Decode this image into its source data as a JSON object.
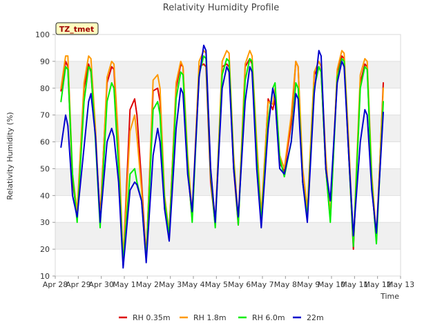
{
  "chart_data": {
    "type": "line",
    "title": "Relativity Humidity Profile",
    "xlabel": "Time",
    "ylabel": "Relativity Humidity (%)",
    "ylim": [
      10,
      100
    ],
    "yticks": [
      10,
      20,
      30,
      40,
      50,
      60,
      70,
      80,
      90,
      100
    ],
    "xlim": [
      0,
      15
    ],
    "xticks": [
      {
        "x": 0,
        "label": "Apr 28"
      },
      {
        "x": 1,
        "label": "Apr 29"
      },
      {
        "x": 2,
        "label": "Apr 30"
      },
      {
        "x": 3,
        "label": "May 1"
      },
      {
        "x": 4,
        "label": "May 2"
      },
      {
        "x": 5,
        "label": "May 3"
      },
      {
        "x": 6,
        "label": "May 4"
      },
      {
        "x": 7,
        "label": "May 5"
      },
      {
        "x": 8,
        "label": "May 6"
      },
      {
        "x": 9,
        "label": "May 7"
      },
      {
        "x": 10,
        "label": "May 8"
      },
      {
        "x": 11,
        "label": "May 9"
      },
      {
        "x": 12,
        "label": "May 10"
      },
      {
        "x": 13,
        "label": "May 11"
      },
      {
        "x": 14,
        "label": "May 12"
      },
      {
        "x": 15,
        "label": "May 13"
      }
    ],
    "grid": "horizontal bands",
    "legend_position": "bottom",
    "annotation": "TZ_tmet",
    "x": [
      0.25,
      0.45,
      0.55,
      0.75,
      0.95,
      1.25,
      1.45,
      1.55,
      1.75,
      1.95,
      2.25,
      2.45,
      2.55,
      2.75,
      2.95,
      3.25,
      3.45,
      3.55,
      3.75,
      3.95,
      4.25,
      4.45,
      4.55,
      4.75,
      4.95,
      5.25,
      5.45,
      5.55,
      5.75,
      5.95,
      6.25,
      6.45,
      6.55,
      6.75,
      6.95,
      7.25,
      7.45,
      7.55,
      7.75,
      7.95,
      8.25,
      8.45,
      8.55,
      8.75,
      8.95,
      9.25,
      9.45,
      9.55,
      9.75,
      9.95,
      10.25,
      10.45,
      10.55,
      10.75,
      10.95,
      11.25,
      11.45,
      11.55,
      11.75,
      11.95,
      12.25,
      12.45,
      12.55,
      12.75,
      12.95,
      13.25,
      13.45,
      13.55,
      13.75,
      13.95,
      14.25
    ],
    "series": [
      {
        "name": "RH 0.35m",
        "color": "#dd0000",
        "values": [
          79,
          90,
          88,
          45,
          33,
          80,
          89,
          86,
          62,
          32,
          82,
          88,
          87,
          55,
          15,
          72,
          76,
          70,
          45,
          17,
          79,
          80,
          75,
          35,
          27,
          80,
          89,
          88,
          50,
          31,
          88,
          89,
          88,
          45,
          29,
          88,
          89,
          88,
          50,
          29,
          88,
          91,
          89,
          55,
          30,
          76,
          72,
          76,
          52,
          49,
          67,
          90,
          88,
          45,
          33,
          85,
          88,
          86,
          50,
          31,
          86,
          92,
          91,
          55,
          20,
          82,
          89,
          88,
          44,
          23,
          82
        ]
      },
      {
        "name": "RH 1.8m",
        "color": "#ff9900",
        "values": [
          80,
          92,
          92,
          48,
          34,
          82,
          92,
          91,
          65,
          30,
          84,
          90,
          89,
          60,
          16,
          64,
          70,
          62,
          42,
          16,
          83,
          85,
          80,
          40,
          26,
          82,
          90,
          88,
          55,
          33,
          90,
          94,
          93,
          50,
          30,
          90,
          94,
          93,
          55,
          31,
          89,
          94,
          92,
          60,
          33,
          75,
          74,
          80,
          55,
          50,
          70,
          90,
          88,
          50,
          35,
          86,
          90,
          88,
          55,
          32,
          87,
          94,
          93,
          60,
          22,
          85,
          91,
          90,
          48,
          25,
          80
        ]
      },
      {
        "name": "RH 6.0m",
        "color": "#00ee00",
        "values": [
          75,
          88,
          87,
          48,
          30,
          75,
          88,
          87,
          60,
          28,
          75,
          82,
          80,
          50,
          15,
          48,
          50,
          45,
          38,
          16,
          72,
          75,
          70,
          38,
          25,
          76,
          86,
          85,
          52,
          30,
          85,
          92,
          91,
          48,
          28,
          85,
          91,
          90,
          52,
          29,
          83,
          91,
          90,
          55,
          30,
          68,
          80,
          82,
          54,
          47,
          60,
          82,
          80,
          45,
          32,
          80,
          88,
          86,
          50,
          30,
          84,
          91,
          90,
          55,
          21,
          80,
          88,
          87,
          45,
          22,
          75
        ]
      },
      {
        "name": "22m",
        "color": "#0000cc",
        "values": [
          58,
          70,
          66,
          40,
          32,
          58,
          75,
          78,
          62,
          30,
          60,
          65,
          62,
          45,
          13,
          42,
          45,
          44,
          38,
          15,
          55,
          65,
          60,
          35,
          23,
          65,
          80,
          78,
          48,
          34,
          84,
          96,
          94,
          50,
          30,
          80,
          88,
          86,
          50,
          32,
          75,
          88,
          86,
          50,
          28,
          65,
          80,
          76,
          50,
          48,
          60,
          78,
          76,
          45,
          30,
          78,
          94,
          92,
          50,
          38,
          82,
          90,
          88,
          55,
          25,
          60,
          72,
          70,
          42,
          26,
          71
        ]
      }
    ]
  }
}
